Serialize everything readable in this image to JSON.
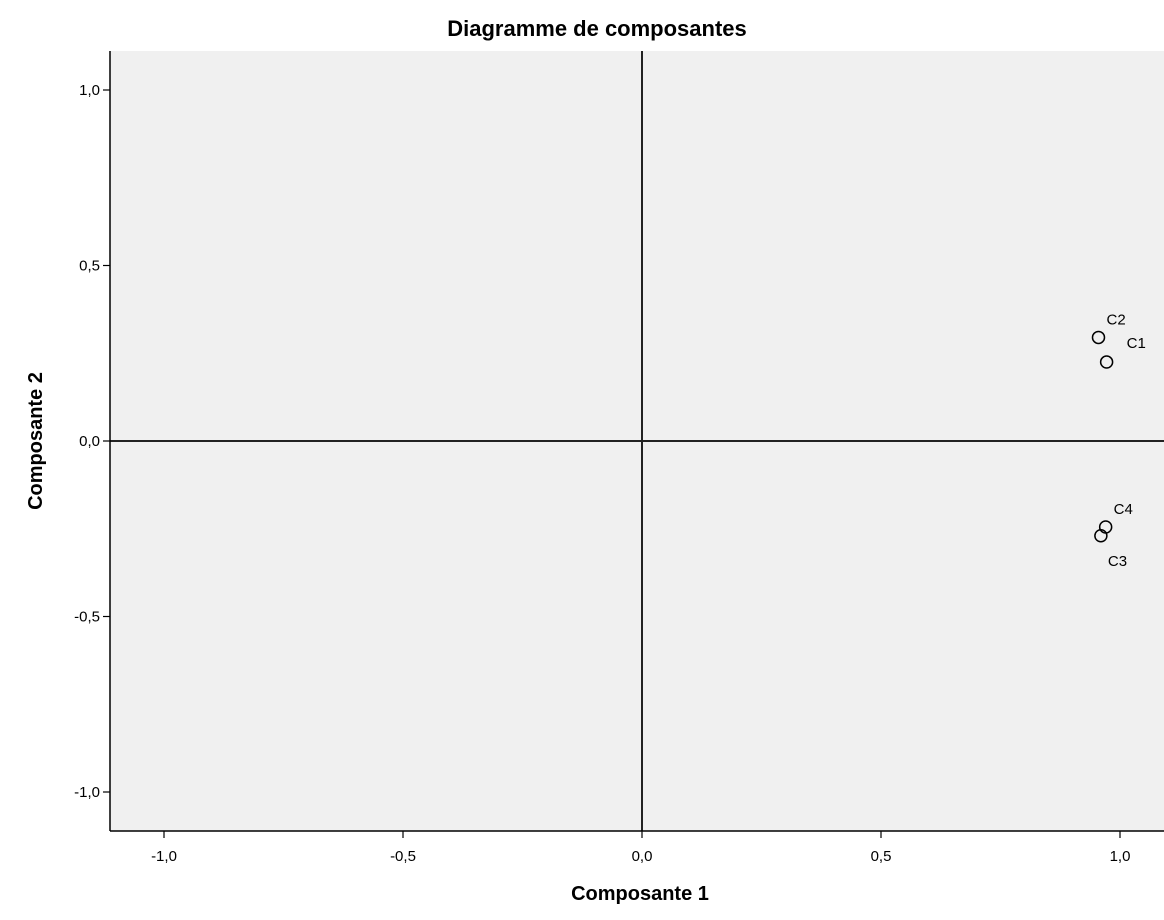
{
  "chart_data": {
    "type": "scatter",
    "title": "Diagramme de composantes",
    "xlabel": "Composante 1",
    "ylabel": "Composante 2",
    "xlim": [
      -1.1,
      1.08
    ],
    "ylim": [
      -1.1,
      1.1
    ],
    "x_ticks": [
      -1.0,
      -0.5,
      0.0,
      0.5,
      1.0
    ],
    "x_tick_labels": [
      "-1,0",
      "-0,5",
      "0,0",
      "0,5",
      "1,0"
    ],
    "y_ticks": [
      -1.0,
      -0.5,
      0.0,
      0.5,
      1.0
    ],
    "y_tick_labels": [
      "-1,0",
      "-0,5",
      "0,0",
      "0,5",
      "1,0"
    ],
    "grid": false,
    "reference_lines": {
      "x": 0,
      "y": 0
    },
    "background_color": "#f0f0f0",
    "points": [
      {
        "label": "C2",
        "x": 0.955,
        "y": 0.295,
        "label_pos": "upper-right"
      },
      {
        "label": "C1",
        "x": 0.972,
        "y": 0.225,
        "label_pos": "upper-right-far"
      },
      {
        "label": "C4",
        "x": 0.97,
        "y": -0.245,
        "label_pos": "upper-right"
      },
      {
        "label": "C3",
        "x": 0.96,
        "y": -0.27,
        "label_pos": "lower-right"
      }
    ]
  }
}
